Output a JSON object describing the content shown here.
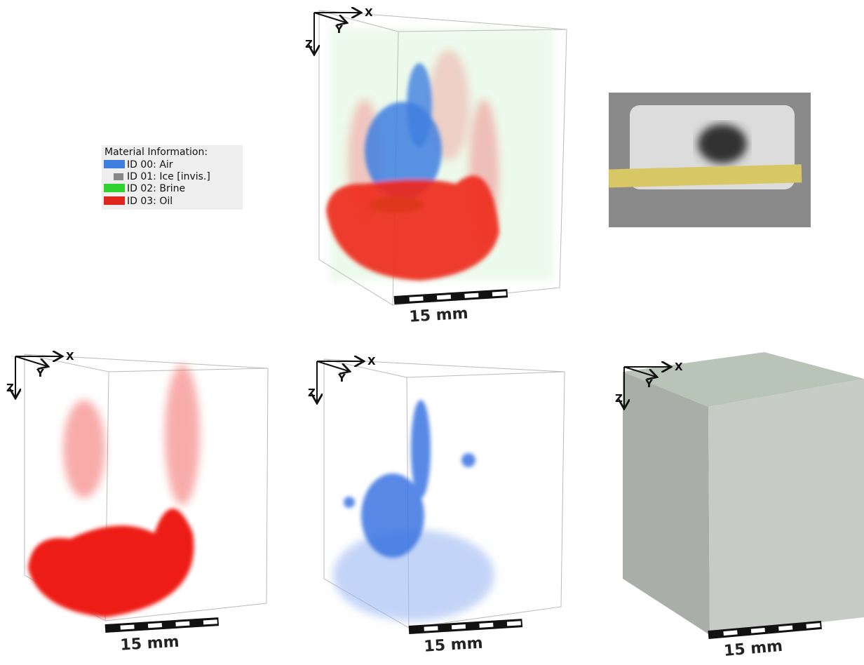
{
  "legend": {
    "title": "Material Information:",
    "items": [
      {
        "label": "ID 00: Air"
      },
      {
        "label": "ID 01: Ice [invis.]"
      },
      {
        "label": "ID 02: Brine"
      },
      {
        "label": "ID 03: Oil"
      }
    ]
  },
  "panels": [
    {
      "axis_x": "X",
      "axis_y": "Y",
      "axis_z": "Z",
      "scale_label": "15 mm"
    },
    {
      "axis_x": "X",
      "axis_y": "Y",
      "axis_z": "Z",
      "scale_label": "15 mm"
    },
    {
      "axis_x": "X",
      "axis_y": "Y",
      "axis_z": "Z",
      "scale_label": "15 mm"
    },
    {
      "axis_x": "X",
      "axis_y": "Y",
      "axis_z": "Z",
      "scale_label": "15 mm"
    }
  ]
}
